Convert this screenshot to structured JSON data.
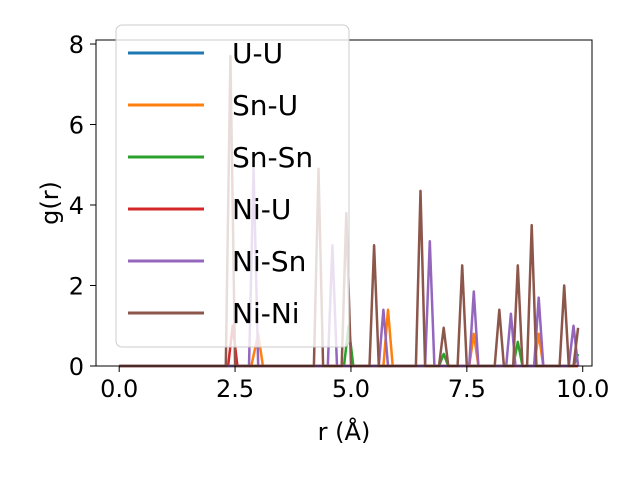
{
  "chart_data": {
    "type": "line",
    "title": "",
    "xlabel": "r (Å)",
    "ylabel": "g(r)",
    "xlim": [
      -0.5,
      10.2
    ],
    "ylim": [
      0,
      8.1
    ],
    "xticks": [
      0.0,
      2.5,
      5.0,
      7.5,
      10.0
    ],
    "xtick_labels": [
      "0.0",
      "2.5",
      "5.0",
      "7.5",
      "10.0"
    ],
    "yticks": [
      0,
      2,
      4,
      6,
      8
    ],
    "ytick_labels": [
      "0",
      "2",
      "4",
      "6",
      "8"
    ],
    "grid": false,
    "legend_position": "top-left",
    "series": [
      {
        "name": "U-U",
        "color": "#1f77b4",
        "points": [
          [
            0,
            0
          ],
          [
            9.9,
            0
          ]
        ]
      },
      {
        "name": "Sn-U",
        "color": "#ff7f0e",
        "points": [
          [
            0,
            0
          ],
          [
            2.85,
            0
          ],
          [
            3.0,
            0.8
          ],
          [
            3.1,
            0
          ],
          [
            5.7,
            0
          ],
          [
            5.8,
            1.4
          ],
          [
            5.9,
            0
          ],
          [
            7.55,
            0
          ],
          [
            7.65,
            0.8
          ],
          [
            7.75,
            0
          ],
          [
            8.95,
            0
          ],
          [
            9.05,
            0.8
          ],
          [
            9.15,
            0
          ],
          [
            9.9,
            0
          ]
        ]
      },
      {
        "name": "Sn-Sn",
        "color": "#2ca02c",
        "points": [
          [
            0,
            0
          ],
          [
            4.85,
            0
          ],
          [
            4.95,
            1.0
          ],
          [
            5.05,
            0
          ],
          [
            6.9,
            0
          ],
          [
            7.0,
            0.3
          ],
          [
            7.1,
            0
          ],
          [
            8.5,
            0
          ],
          [
            8.6,
            0.6
          ],
          [
            8.7,
            0
          ],
          [
            9.8,
            0
          ],
          [
            9.9,
            0.3
          ]
        ]
      },
      {
        "name": "Ni-U",
        "color": "#d62728",
        "points": [
          [
            0,
            0
          ],
          [
            2.35,
            0
          ],
          [
            2.45,
            1.0
          ],
          [
            2.55,
            0
          ],
          [
            9.9,
            0
          ]
        ]
      },
      {
        "name": "Ni-Sn",
        "color": "#9467bd",
        "points": [
          [
            0,
            0
          ],
          [
            2.8,
            0
          ],
          [
            2.9,
            4.9
          ],
          [
            3.0,
            0
          ],
          [
            4.5,
            0
          ],
          [
            4.6,
            3.0
          ],
          [
            4.7,
            0
          ],
          [
            5.6,
            0
          ],
          [
            5.7,
            1.4
          ],
          [
            5.8,
            0
          ],
          [
            6.6,
            0
          ],
          [
            6.7,
            3.1
          ],
          [
            6.8,
            0
          ],
          [
            7.55,
            0
          ],
          [
            7.65,
            1.85
          ],
          [
            7.75,
            0
          ],
          [
            8.35,
            0
          ],
          [
            8.45,
            1.3
          ],
          [
            8.55,
            0
          ],
          [
            8.95,
            0
          ],
          [
            9.05,
            1.7
          ],
          [
            9.15,
            0
          ],
          [
            9.7,
            0
          ],
          [
            9.8,
            1.0
          ],
          [
            9.9,
            0
          ]
        ]
      },
      {
        "name": "Ni-Ni",
        "color": "#8c564b",
        "points": [
          [
            0,
            0
          ],
          [
            2.3,
            0
          ],
          [
            2.4,
            7.7
          ],
          [
            2.5,
            0
          ],
          [
            4.2,
            0
          ],
          [
            4.3,
            4.9
          ],
          [
            4.4,
            0
          ],
          [
            4.8,
            0
          ],
          [
            4.9,
            3.8
          ],
          [
            5.0,
            0
          ],
          [
            5.4,
            0
          ],
          [
            5.5,
            3.0
          ],
          [
            5.6,
            0
          ],
          [
            6.4,
            0
          ],
          [
            6.5,
            4.35
          ],
          [
            6.6,
            0
          ],
          [
            6.9,
            0
          ],
          [
            7.0,
            0.95
          ],
          [
            7.1,
            0
          ],
          [
            7.3,
            0
          ],
          [
            7.4,
            2.5
          ],
          [
            7.5,
            0
          ],
          [
            8.1,
            0
          ],
          [
            8.2,
            1.4
          ],
          [
            8.3,
            0
          ],
          [
            8.5,
            0
          ],
          [
            8.6,
            2.5
          ],
          [
            8.7,
            0
          ],
          [
            8.8,
            0
          ],
          [
            8.9,
            3.5
          ],
          [
            9.0,
            0
          ],
          [
            9.5,
            0
          ],
          [
            9.6,
            2.0
          ],
          [
            9.7,
            0
          ],
          [
            9.8,
            0
          ],
          [
            9.9,
            0.95
          ]
        ]
      }
    ]
  }
}
